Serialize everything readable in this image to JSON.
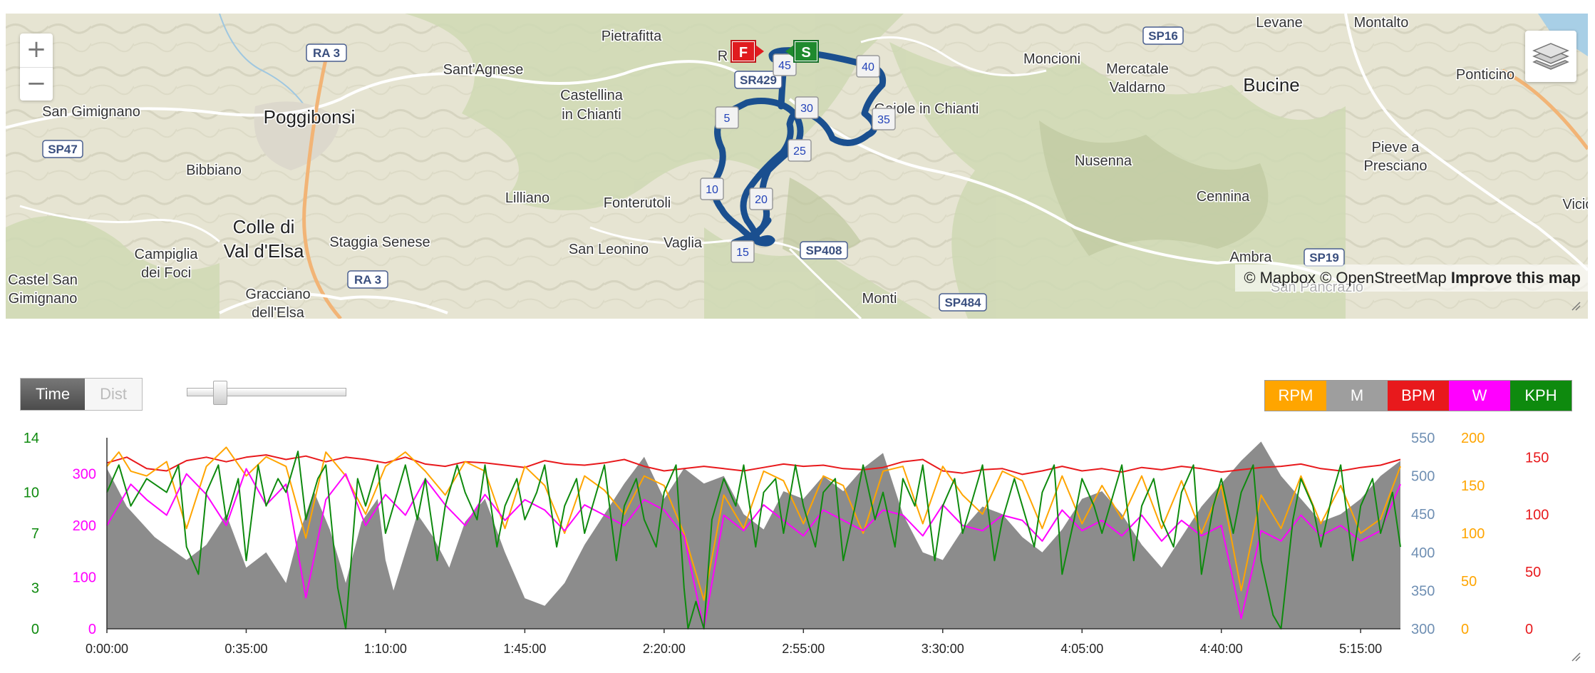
{
  "map": {
    "zoom_in": "+",
    "zoom_out": "−",
    "attribution": {
      "mapbox": "© Mapbox",
      "osm": "© OpenStreetMap",
      "improve": "Improve this map"
    },
    "route_color": "#1a4f8f",
    "markers": [
      {
        "label": "5"
      },
      {
        "label": "10"
      },
      {
        "label": "15"
      },
      {
        "label": "20"
      },
      {
        "label": "25"
      },
      {
        "label": "30"
      },
      {
        "label": "35"
      },
      {
        "label": "40"
      },
      {
        "label": "45"
      }
    ],
    "finish_flag": "F",
    "start_flag": "S",
    "places": [
      "Pietrafitta",
      "RA 3",
      "Sant'Agnese",
      "San Gimignano",
      "Poggibonsi",
      "SP47",
      "Bibbiano",
      "Castellina",
      "in Chianti",
      "SR429",
      "Lilliano",
      "Fonterutoli",
      "Colle di",
      "Val d'Elsa",
      "Staggia Senese",
      "Campiglia",
      "dei Foci",
      "Castel San",
      "Gimignano",
      "Gracciano",
      "dell'Elsa",
      "RA 3",
      "San Leonino",
      "Vaglia",
      "SP408",
      "Monti",
      "SP484",
      "Gaiole in Chianti",
      "Moncioni",
      "SP16",
      "Mercatale",
      "Valdarno",
      "Bucine",
      "Levane",
      "Montalto",
      "Ponticino",
      "Nusenna",
      "Pieve a",
      "Presciano",
      "Cennina",
      "Ambra",
      "SP19",
      "San Pancrazio",
      "Vicio",
      "R"
    ]
  },
  "controls": {
    "modes": [
      "Time",
      "Dist"
    ],
    "active_mode": "Time",
    "legend": [
      {
        "label": "RPM",
        "color": "#ffa500"
      },
      {
        "label": "M",
        "color": "#9e9e9e"
      },
      {
        "label": "BPM",
        "color": "#e8191c"
      },
      {
        "label": "W",
        "color": "#ff00ff"
      },
      {
        "label": "KPH",
        "color": "#0e8a0e"
      }
    ]
  },
  "chart_data": {
    "type": "line",
    "x_label": "",
    "x_ticks": [
      "0:00:00",
      "0:35:00",
      "1:10:00",
      "1:45:00",
      "2:20:00",
      "2:55:00",
      "3:30:00",
      "4:05:00",
      "4:40:00",
      "5:15:00"
    ],
    "axes": {
      "kph": {
        "color": "#0e8a0e",
        "ticks": [
          "14",
          "10",
          "7",
          "3",
          "0"
        ],
        "range": [
          0,
          14
        ]
      },
      "w": {
        "color": "#ff00ff",
        "ticks": [
          "300",
          "200",
          "100",
          "0"
        ],
        "range": [
          0,
          370
        ]
      },
      "m": {
        "color": "#6f8fb3",
        "ticks": [
          "550",
          "500",
          "450",
          "400",
          "350",
          "300"
        ],
        "range": [
          300,
          550
        ]
      },
      "rpm": {
        "color": "#ffa500",
        "ticks": [
          "200",
          "150",
          "100",
          "50",
          "0"
        ],
        "range": [
          0,
          200
        ]
      },
      "bpm": {
        "color": "#e8191c",
        "ticks": [
          "150",
          "100",
          "50",
          "0"
        ],
        "range": [
          0,
          167
        ]
      }
    },
    "series": [
      {
        "name": "M",
        "color": "#8c8c8c",
        "x_min": [
          0,
          5,
          12,
          20,
          25,
          30,
          35,
          40,
          45,
          48,
          52,
          56,
          60,
          64,
          68,
          70,
          72,
          75,
          78,
          82,
          86,
          90,
          95,
          100,
          105,
          110,
          115,
          120,
          125,
          130,
          135,
          140,
          145,
          150,
          155,
          160,
          165,
          170,
          175,
          180,
          185,
          190,
          195,
          200,
          205,
          210,
          215,
          220,
          225,
          230,
          235,
          240,
          245,
          250,
          255,
          260,
          265,
          270,
          275,
          280,
          285,
          290,
          295,
          300,
          305,
          310,
          315,
          320,
          325
        ],
        "values": [
          510,
          460,
          420,
          390,
          410,
          450,
          380,
          400,
          360,
          420,
          480,
          430,
          360,
          440,
          470,
          390,
          350,
          400,
          450,
          420,
          380,
          440,
          470,
          400,
          340,
          330,
          360,
          410,
          450,
          490,
          525,
          470,
          510,
          490,
          500,
          450,
          430,
          480,
          470,
          500,
          480,
          510,
          530,
          450,
          400,
          390,
          430,
          460,
          450,
          420,
          400,
          430,
          470,
          480,
          450,
          410,
          380,
          420,
          460,
          490,
          520,
          545,
          500,
          470,
          440,
          450,
          470,
          500,
          520
        ]
      },
      {
        "name": "BPM",
        "color": "#e8191c",
        "x_min": [
          0,
          5,
          10,
          15,
          20,
          25,
          30,
          35,
          40,
          45,
          50,
          55,
          60,
          65,
          70,
          75,
          80,
          85,
          90,
          95,
          100,
          105,
          110,
          115,
          120,
          125,
          130,
          135,
          140,
          145,
          150,
          155,
          160,
          165,
          170,
          175,
          180,
          185,
          190,
          195,
          200,
          205,
          210,
          215,
          220,
          225,
          230,
          235,
          240,
          245,
          250,
          255,
          260,
          265,
          270,
          275,
          280,
          285,
          290,
          295,
          300,
          305,
          310,
          315,
          320,
          325
        ],
        "values": [
          145,
          150,
          140,
          138,
          147,
          150,
          146,
          150,
          152,
          148,
          151,
          146,
          150,
          148,
          145,
          150,
          144,
          142,
          146,
          145,
          143,
          141,
          147,
          144,
          143,
          145,
          148,
          142,
          138,
          140,
          142,
          140,
          138,
          141,
          144,
          142,
          143,
          140,
          139,
          141,
          146,
          148,
          138,
          136,
          139,
          140,
          135,
          138,
          142,
          138,
          140,
          137,
          141,
          139,
          142,
          140,
          137,
          139,
          141,
          142,
          144,
          140,
          138,
          141,
          143,
          148
        ]
      },
      {
        "name": "RPM",
        "color": "#ffa500",
        "x_min": [
          0,
          3,
          6,
          10,
          15,
          20,
          25,
          30,
          35,
          40,
          45,
          50,
          55,
          60,
          65,
          70,
          75,
          80,
          85,
          90,
          95,
          100,
          105,
          110,
          115,
          120,
          125,
          130,
          135,
          140,
          145,
          150,
          155,
          160,
          165,
          170,
          175,
          180,
          185,
          190,
          195,
          200,
          205,
          210,
          215,
          220,
          225,
          230,
          235,
          240,
          245,
          250,
          255,
          260,
          265,
          270,
          275,
          280,
          285,
          290,
          295,
          300,
          305,
          310,
          315,
          320,
          325
        ],
        "values": [
          170,
          185,
          165,
          160,
          175,
          105,
          170,
          190,
          160,
          180,
          170,
          95,
          185,
          160,
          120,
          170,
          185,
          165,
          140,
          175,
          165,
          105,
          170,
          150,
          100,
          160,
          145,
          120,
          160,
          150,
          100,
          30,
          140,
          105,
          165,
          155,
          110,
          160,
          150,
          100,
          165,
          170,
          110,
          170,
          140,
          120,
          165,
          155,
          105,
          160,
          110,
          150,
          115,
          160,
          105,
          155,
          100,
          150,
          40,
          140,
          105,
          160,
          110,
          150,
          100,
          115,
          170
        ]
      },
      {
        "name": "W",
        "color": "#ff00ff",
        "x_min": [
          0,
          3,
          6,
          10,
          15,
          20,
          25,
          30,
          35,
          40,
          45,
          50,
          55,
          60,
          65,
          70,
          75,
          80,
          85,
          90,
          95,
          100,
          105,
          110,
          115,
          120,
          125,
          130,
          135,
          140,
          145,
          150,
          155,
          160,
          165,
          170,
          175,
          180,
          185,
          190,
          195,
          200,
          205,
          210,
          215,
          220,
          225,
          230,
          235,
          240,
          245,
          250,
          255,
          260,
          265,
          270,
          275,
          280,
          285,
          290,
          295,
          300,
          305,
          310,
          315,
          320,
          325
        ],
        "values": [
          200,
          240,
          280,
          250,
          220,
          300,
          260,
          200,
          310,
          240,
          280,
          60,
          250,
          300,
          200,
          260,
          220,
          290,
          240,
          200,
          260,
          210,
          250,
          230,
          190,
          240,
          220,
          200,
          250,
          230,
          180,
          0,
          220,
          190,
          240,
          210,
          180,
          230,
          210,
          190,
          230,
          220,
          180,
          240,
          200,
          190,
          220,
          210,
          170,
          230,
          190,
          210,
          180,
          220,
          170,
          210,
          180,
          200,
          20,
          190,
          170,
          220,
          180,
          200,
          170,
          190,
          280
        ]
      },
      {
        "name": "KPH",
        "color": "#0e8a0e",
        "x_min": [
          0,
          3,
          6,
          10,
          15,
          18,
          20,
          23,
          25,
          28,
          30,
          33,
          35,
          38,
          40,
          43,
          45,
          48,
          50,
          53,
          55,
          58,
          60,
          63,
          65,
          68,
          70,
          73,
          75,
          78,
          80,
          83,
          85,
          88,
          90,
          93,
          95,
          98,
          100,
          103,
          105,
          108,
          110,
          113,
          115,
          118,
          120,
          123,
          125,
          128,
          130,
          133,
          135,
          138,
          140,
          143,
          145,
          146,
          148,
          150,
          152,
          155,
          158,
          160,
          163,
          165,
          168,
          170,
          173,
          175,
          178,
          180,
          183,
          185,
          188,
          190,
          193,
          195,
          198,
          200,
          203,
          205,
          208,
          210,
          213,
          215,
          218,
          220,
          223,
          225,
          228,
          230,
          233,
          235,
          238,
          240,
          243,
          245,
          248,
          250,
          253,
          255,
          258,
          260,
          263,
          265,
          268,
          270,
          273,
          275,
          278,
          280,
          283,
          285,
          288,
          290,
          293,
          295,
          298,
          300,
          303,
          305,
          308,
          310,
          313,
          315,
          318,
          320,
          323,
          325
        ],
        "values": [
          10,
          12,
          9,
          11,
          10,
          12,
          6,
          4,
          10,
          12,
          8,
          11,
          5,
          12,
          9,
          11,
          10,
          13,
          8,
          11,
          12,
          3,
          0,
          11,
          9,
          12,
          7,
          10,
          12,
          8,
          11,
          5,
          9,
          12,
          10,
          8,
          12,
          6,
          9,
          11,
          8,
          10,
          12,
          6,
          9,
          11,
          7,
          10,
          12,
          5,
          9,
          11,
          8,
          6,
          10,
          12,
          3,
          0,
          2,
          0,
          8,
          11,
          9,
          12,
          6,
          10,
          11,
          7,
          12,
          9,
          6,
          10,
          11,
          5,
          9,
          12,
          8,
          10,
          6,
          11,
          9,
          12,
          5,
          9,
          11,
          7,
          10,
          12,
          5,
          8,
          11,
          9,
          6,
          10,
          12,
          4,
          8,
          11,
          9,
          7,
          10,
          12,
          5,
          9,
          11,
          8,
          6,
          10,
          12,
          4,
          9,
          11,
          7,
          10,
          12,
          5,
          1,
          0,
          8,
          11,
          9,
          6,
          10,
          12,
          5,
          9,
          11,
          7,
          10,
          6
        ]
      }
    ]
  }
}
